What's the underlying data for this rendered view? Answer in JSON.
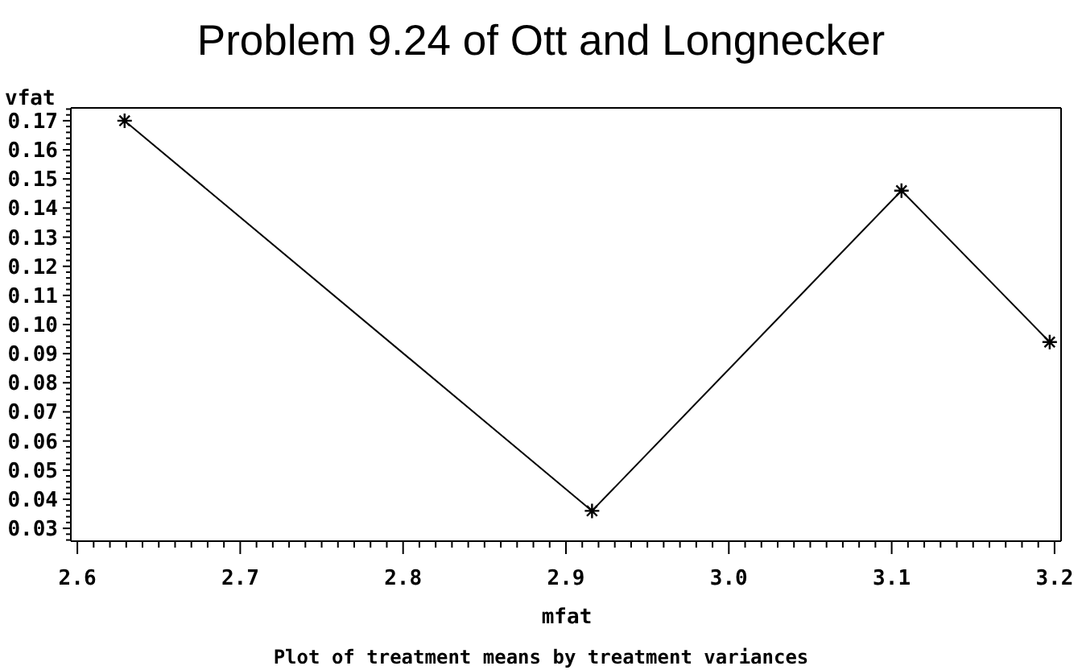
{
  "chart_data": {
    "type": "line",
    "title": "Problem 9.24 of Ott and Longnecker",
    "xlabel": "mfat",
    "ylabel": "vfat",
    "annotations": [
      "Plot of treatment means by treatment variances"
    ],
    "x": [
      2.629,
      2.916,
      3.106,
      3.197
    ],
    "series": [
      {
        "color": "#000000",
        "values": [
          0.17,
          0.036,
          0.146,
          0.094
        ]
      }
    ],
    "xlim": [
      2.596,
      3.204
    ],
    "ylim": [
      0.0256,
      0.1744
    ],
    "xticks": [
      2.6,
      {
        "value": 2.61,
        "label": null
      },
      {
        "value": 2.62,
        "label": null
      },
      {
        "value": 2.63,
        "label": null
      },
      {
        "value": 2.64,
        "label": null
      },
      {
        "value": 2.65,
        "label": null
      },
      {
        "value": 2.66,
        "label": null
      },
      {
        "value": 2.67,
        "label": null
      },
      {
        "value": 2.68,
        "label": null
      },
      {
        "value": 2.69,
        "label": null
      },
      2.7,
      {
        "value": 2.71,
        "label": null
      },
      {
        "value": 2.72,
        "label": null
      },
      {
        "value": 2.73,
        "label": null
      },
      {
        "value": 2.74,
        "label": null
      },
      {
        "value": 2.75,
        "label": null
      },
      {
        "value": 2.76,
        "label": null
      },
      {
        "value": 2.77,
        "label": null
      },
      {
        "value": 2.78,
        "label": null
      },
      {
        "value": 2.79,
        "label": null
      },
      2.8,
      {
        "value": 2.81,
        "label": null
      },
      {
        "value": 2.82,
        "label": null
      },
      {
        "value": 2.83,
        "label": null
      },
      {
        "value": 2.84,
        "label": null
      },
      {
        "value": 2.85,
        "label": null
      },
      {
        "value": 2.86,
        "label": null
      },
      {
        "value": 2.87,
        "label": null
      },
      {
        "value": 2.88,
        "label": null
      },
      {
        "value": 2.89,
        "label": null
      },
      2.9,
      {
        "value": 2.91,
        "label": null
      },
      {
        "value": 2.92,
        "label": null
      },
      {
        "value": 2.93,
        "label": null
      },
      {
        "value": 2.94,
        "label": null
      },
      {
        "value": 2.95,
        "label": null
      },
      {
        "value": 2.96,
        "label": null
      },
      {
        "value": 2.97,
        "label": null
      },
      {
        "value": 2.98,
        "label": null
      },
      {
        "value": 2.99,
        "label": null
      },
      {
        "value": 3.0,
        "label": "3.0"
      },
      {
        "value": 3.01,
        "label": null
      },
      {
        "value": 3.02,
        "label": null
      },
      {
        "value": 3.03,
        "label": null
      },
      {
        "value": 3.04,
        "label": null
      },
      {
        "value": 3.05,
        "label": null
      },
      {
        "value": 3.06,
        "label": null
      },
      {
        "value": 3.07,
        "label": null
      },
      {
        "value": 3.08,
        "label": null
      },
      {
        "value": 3.09,
        "label": null
      },
      3.1,
      {
        "value": 3.11,
        "label": null
      },
      {
        "value": 3.12,
        "label": null
      },
      {
        "value": 3.13,
        "label": null
      },
      {
        "value": 3.14,
        "label": null
      },
      {
        "value": 3.15,
        "label": null
      },
      {
        "value": 3.16,
        "label": null
      },
      {
        "value": 3.17,
        "label": null
      },
      {
        "value": 3.18,
        "label": null
      },
      {
        "value": 3.19,
        "label": null
      },
      3.2
    ],
    "yticks": [
      {
        "value": 0.026,
        "label": null
      },
      {
        "value": 0.028,
        "label": null
      },
      0.03,
      {
        "value": 0.032,
        "label": null
      },
      {
        "value": 0.034,
        "label": null
      },
      {
        "value": 0.036,
        "label": null
      },
      {
        "value": 0.038,
        "label": null
      },
      0.04,
      {
        "value": 0.042,
        "label": null
      },
      {
        "value": 0.044,
        "label": null
      },
      {
        "value": 0.046,
        "label": null
      },
      {
        "value": 0.048,
        "label": null
      },
      0.05,
      {
        "value": 0.052,
        "label": null
      },
      {
        "value": 0.054,
        "label": null
      },
      {
        "value": 0.056,
        "label": null
      },
      {
        "value": 0.058,
        "label": null
      },
      0.06,
      {
        "value": 0.062,
        "label": null
      },
      {
        "value": 0.064,
        "label": null
      },
      {
        "value": 0.066,
        "label": null
      },
      {
        "value": 0.068,
        "label": null
      },
      0.07,
      {
        "value": 0.072,
        "label": null
      },
      {
        "value": 0.074,
        "label": null
      },
      {
        "value": 0.076,
        "label": null
      },
      {
        "value": 0.078,
        "label": null
      },
      0.08,
      {
        "value": 0.082,
        "label": null
      },
      {
        "value": 0.084,
        "label": null
      },
      {
        "value": 0.086,
        "label": null
      },
      {
        "value": 0.088,
        "label": null
      },
      0.09,
      {
        "value": 0.092,
        "label": null
      },
      {
        "value": 0.094,
        "label": null
      },
      {
        "value": 0.096,
        "label": null
      },
      {
        "value": 0.098,
        "label": null
      },
      {
        "value": 0.1,
        "label": "0.10"
      },
      {
        "value": 0.102,
        "label": null
      },
      {
        "value": 0.104,
        "label": null
      },
      {
        "value": 0.106,
        "label": null
      },
      {
        "value": 0.108,
        "label": null
      },
      0.11,
      {
        "value": 0.112,
        "label": null
      },
      {
        "value": 0.114,
        "label": null
      },
      {
        "value": 0.116,
        "label": null
      },
      {
        "value": 0.118,
        "label": null
      },
      0.12,
      {
        "value": 0.122,
        "label": null
      },
      {
        "value": 0.124,
        "label": null
      },
      {
        "value": 0.126,
        "label": null
      },
      {
        "value": 0.128,
        "label": null
      },
      0.13,
      {
        "value": 0.132,
        "label": null
      },
      {
        "value": 0.134,
        "label": null
      },
      {
        "value": 0.136,
        "label": null
      },
      {
        "value": 0.138,
        "label": null
      },
      0.14,
      {
        "value": 0.142,
        "label": null
      },
      {
        "value": 0.144,
        "label": null
      },
      {
        "value": 0.146,
        "label": null
      },
      {
        "value": 0.148,
        "label": null
      },
      0.15,
      {
        "value": 0.152,
        "label": null
      },
      {
        "value": 0.154,
        "label": null
      },
      {
        "value": 0.156,
        "label": null
      },
      {
        "value": 0.158,
        "label": null
      },
      0.16,
      {
        "value": 0.162,
        "label": null
      },
      {
        "value": 0.164,
        "label": null
      },
      {
        "value": 0.166,
        "label": null
      },
      {
        "value": 0.168,
        "label": null
      },
      0.17,
      {
        "value": 0.172,
        "label": null
      },
      {
        "value": 0.174,
        "label": null
      }
    ],
    "marker": "cross",
    "line_style": "solid"
  }
}
